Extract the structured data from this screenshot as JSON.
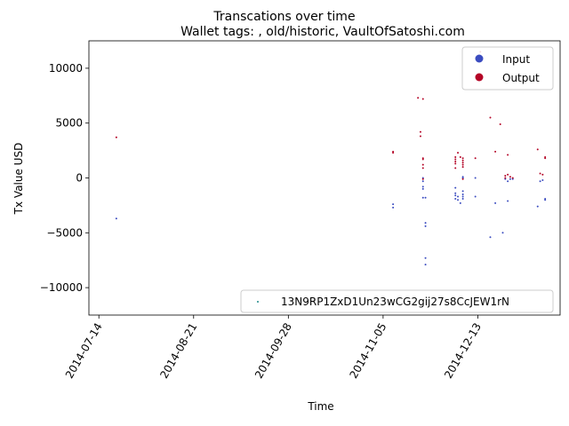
{
  "chart_data": {
    "type": "scatter",
    "title": "Transcations over time",
    "subtitle": "Wallet tags: , old/historic, VaultOfSatoshi.com",
    "xlabel": "Time",
    "ylabel": "Tx Value USD",
    "xlim": [
      "2014-07-10",
      "2015-01-15"
    ],
    "ylim": [
      -12500,
      12500
    ],
    "x_ticks": [
      "2014-07-14",
      "2014-08-21",
      "2014-09-28",
      "2014-11-05",
      "2014-12-13"
    ],
    "y_ticks": [
      -10000,
      -5000,
      0,
      5000,
      10000
    ],
    "y_tick_labels": [
      "−10000",
      "−5000",
      "0",
      "5000",
      "10000"
    ],
    "grid": false,
    "legend_top": {
      "placement": "top-right",
      "entries": [
        "Input",
        "Output"
      ]
    },
    "legend_bottom": {
      "placement": "bottom-right",
      "entries": [
        "13N9RP1ZxD1Un23wCG2gij27s8CcJEW1rN"
      ]
    },
    "colors": {
      "input": "#3b4cc0",
      "output": "#b40426",
      "address": "#1f8a8a"
    },
    "series": [
      {
        "name": "Input",
        "points": [
          {
            "x": "2014-07-21",
            "y": -3700
          },
          {
            "x": "2014-11-09",
            "y": -2400
          },
          {
            "x": "2014-11-09",
            "y": -2700
          },
          {
            "x": "2014-11-21",
            "y": 0
          },
          {
            "x": "2014-11-21",
            "y": -300
          },
          {
            "x": "2014-11-21",
            "y": -800
          },
          {
            "x": "2014-11-21",
            "y": -1000
          },
          {
            "x": "2014-11-21",
            "y": -1800
          },
          {
            "x": "2014-11-22",
            "y": -1800
          },
          {
            "x": "2014-11-22",
            "y": -4100
          },
          {
            "x": "2014-11-22",
            "y": -4400
          },
          {
            "x": "2014-11-22",
            "y": -7300
          },
          {
            "x": "2014-11-22",
            "y": -7900
          },
          {
            "x": "2014-12-04",
            "y": -900
          },
          {
            "x": "2014-12-04",
            "y": -1400
          },
          {
            "x": "2014-12-04",
            "y": -1600
          },
          {
            "x": "2014-12-04",
            "y": -1900
          },
          {
            "x": "2014-12-05",
            "y": -1700
          },
          {
            "x": "2014-12-05",
            "y": -2000
          },
          {
            "x": "2014-12-06",
            "y": -2300
          },
          {
            "x": "2014-12-07",
            "y": -1200
          },
          {
            "x": "2014-12-07",
            "y": -1500
          },
          {
            "x": "2014-12-07",
            "y": -1700
          },
          {
            "x": "2014-12-07",
            "y": -1900
          },
          {
            "x": "2014-12-07",
            "y": 0
          },
          {
            "x": "2014-12-07",
            "y": 100
          },
          {
            "x": "2014-12-12",
            "y": -1700
          },
          {
            "x": "2014-12-12",
            "y": 0
          },
          {
            "x": "2014-12-18",
            "y": -5400
          },
          {
            "x": "2014-12-20",
            "y": -2300
          },
          {
            "x": "2014-12-23",
            "y": -5000
          },
          {
            "x": "2014-12-24",
            "y": -100
          },
          {
            "x": "2014-12-25",
            "y": -2100
          },
          {
            "x": "2014-12-25",
            "y": -300
          },
          {
            "x": "2014-12-26",
            "y": -100
          },
          {
            "x": "2014-12-27",
            "y": -100
          },
          {
            "x": "2015-01-06",
            "y": -2600
          },
          {
            "x": "2015-01-07",
            "y": -300
          },
          {
            "x": "2015-01-08",
            "y": -200
          },
          {
            "x": "2015-01-09",
            "y": -1900
          },
          {
            "x": "2015-01-09",
            "y": -2000
          }
        ]
      },
      {
        "name": "Output",
        "points": [
          {
            "x": "2014-07-21",
            "y": 3700
          },
          {
            "x": "2014-11-09",
            "y": 2400
          },
          {
            "x": "2014-11-09",
            "y": 2300
          },
          {
            "x": "2014-11-19",
            "y": 7300
          },
          {
            "x": "2014-11-20",
            "y": 3800
          },
          {
            "x": "2014-11-20",
            "y": 4200
          },
          {
            "x": "2014-11-21",
            "y": 7200
          },
          {
            "x": "2014-11-21",
            "y": 1800
          },
          {
            "x": "2014-11-21",
            "y": 1700
          },
          {
            "x": "2014-11-21",
            "y": 1200
          },
          {
            "x": "2014-11-21",
            "y": 900
          },
          {
            "x": "2014-11-21",
            "y": -100
          },
          {
            "x": "2014-12-04",
            "y": 1900
          },
          {
            "x": "2014-12-04",
            "y": 1700
          },
          {
            "x": "2014-12-04",
            "y": 1500
          },
          {
            "x": "2014-12-04",
            "y": 1300
          },
          {
            "x": "2014-12-04",
            "y": 900
          },
          {
            "x": "2014-12-05",
            "y": 2300
          },
          {
            "x": "2014-12-06",
            "y": 1900
          },
          {
            "x": "2014-12-07",
            "y": 1800
          },
          {
            "x": "2014-12-07",
            "y": 1600
          },
          {
            "x": "2014-12-07",
            "y": 1400
          },
          {
            "x": "2014-12-07",
            "y": 1200
          },
          {
            "x": "2014-12-07",
            "y": 1000
          },
          {
            "x": "2014-12-07",
            "y": -100
          },
          {
            "x": "2014-12-12",
            "y": 1800
          },
          {
            "x": "2014-12-14",
            "y": 11500
          },
          {
            "x": "2014-12-18",
            "y": 5500
          },
          {
            "x": "2014-12-20",
            "y": 2400
          },
          {
            "x": "2014-12-22",
            "y": 4900
          },
          {
            "x": "2014-12-24",
            "y": 200
          },
          {
            "x": "2014-12-24",
            "y": 0
          },
          {
            "x": "2014-12-25",
            "y": 2100
          },
          {
            "x": "2014-12-25",
            "y": 300
          },
          {
            "x": "2014-12-26",
            "y": 100
          },
          {
            "x": "2014-12-27",
            "y": 0
          },
          {
            "x": "2015-01-06",
            "y": 2600
          },
          {
            "x": "2015-01-07",
            "y": 400
          },
          {
            "x": "2015-01-08",
            "y": 300
          },
          {
            "x": "2015-01-09",
            "y": 1900
          },
          {
            "x": "2015-01-09",
            "y": 1800
          }
        ]
      }
    ]
  }
}
